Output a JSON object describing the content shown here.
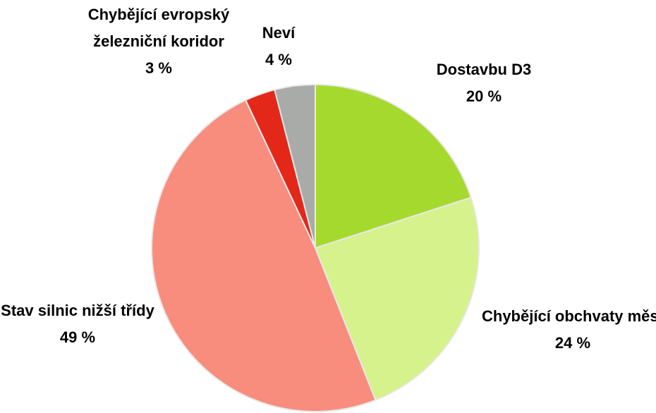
{
  "chart_data": {
    "type": "pie",
    "categories": [
      "Dostavbu D3",
      "Chybějící obchvaty měst",
      "Stav silnic nižší třídy",
      "Chybějící evropský železniční koridor",
      "Neví"
    ],
    "values": [
      20,
      24,
      49,
      3,
      4
    ],
    "value_labels": [
      "20 %",
      "24 %",
      "49 %",
      "3 %",
      "4 %"
    ],
    "colors": [
      "#a6d92e",
      "#d5f28c",
      "#f88d7d",
      "#e3281a",
      "#a9aba9"
    ]
  }
}
